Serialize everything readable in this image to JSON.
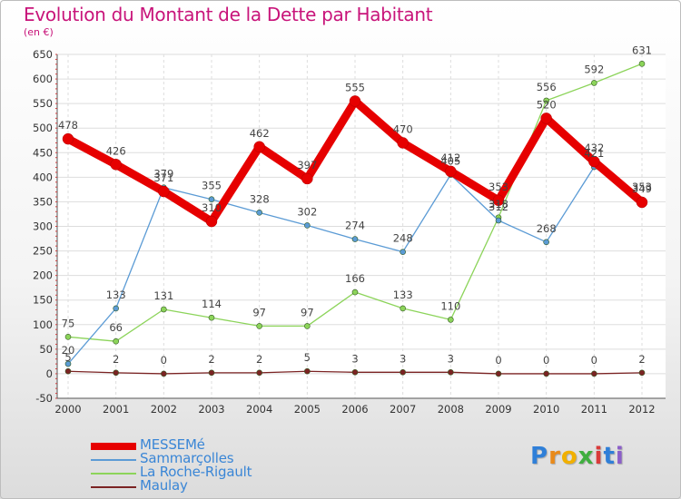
{
  "title": "Evolution du Montant de la Dette par Habitant",
  "subtitle": "(en €)",
  "chart_data": {
    "type": "line",
    "x": [
      "2000",
      "2001",
      "2002",
      "2003",
      "2004",
      "2005",
      "2006",
      "2007",
      "2008",
      "2009",
      "2010",
      "2011",
      "2012"
    ],
    "ylim": [
      -50,
      650
    ],
    "yticks": [
      -50,
      0,
      50,
      100,
      150,
      200,
      250,
      300,
      350,
      400,
      450,
      500,
      550,
      600,
      650
    ],
    "grid": true,
    "legend_position": "bottom-left",
    "series": [
      {
        "name": "MESSEMé",
        "color": "#e60000",
        "values": [
          478,
          426,
          371,
          310,
          462,
          397,
          555,
          470,
          412,
          353,
          520,
          432,
          349
        ]
      },
      {
        "name": "Sammarçolles",
        "color": "#5b9bd5",
        "values": [
          20,
          133,
          379,
          355,
          328,
          302,
          274,
          248,
          405,
          312,
          268,
          421,
          353
        ]
      },
      {
        "name": "La Roche-Rigault",
        "color": "#8cd45a",
        "values": [
          75,
          66,
          131,
          114,
          97,
          97,
          166,
          133,
          110,
          318,
          556,
          592,
          631
        ]
      },
      {
        "name": "Maulay",
        "color": "#7b2323",
        "values": [
          5,
          2,
          0,
          2,
          2,
          5,
          3,
          3,
          3,
          0,
          0,
          0,
          2
        ]
      }
    ]
  },
  "legend": [
    {
      "label": "MESSEMé",
      "color": "#e60000"
    },
    {
      "label": "Sammarçolles",
      "color": "#5b9bd5"
    },
    {
      "label": "La Roche-Rigault",
      "color": "#8cd45a"
    },
    {
      "label": "Maulay",
      "color": "#7b2323"
    }
  ],
  "logo": {
    "letters": [
      "P",
      "r",
      "o",
      "x",
      "i",
      "t",
      "i"
    ],
    "colors": [
      "#2f7fd8",
      "#e98a1a",
      "#f1b000",
      "#3fae3f",
      "#d93b3b",
      "#2f7fd8",
      "#8b5fc9"
    ]
  }
}
